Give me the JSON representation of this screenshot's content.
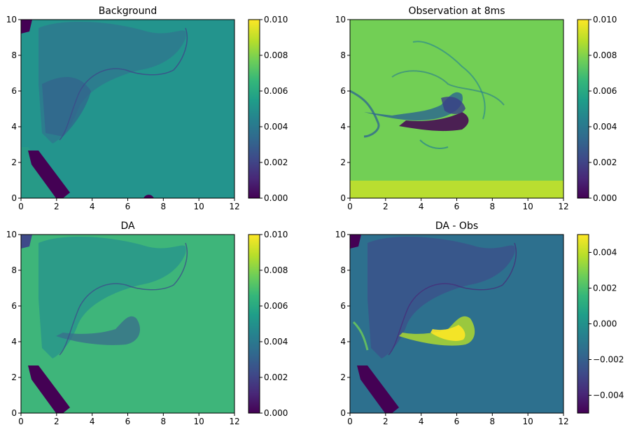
{
  "chart_data": [
    {
      "type": "heatmap",
      "title": "Background",
      "xlim": [
        0,
        12
      ],
      "ylim": [
        0,
        10
      ],
      "x_ticks": [
        "0",
        "2",
        "4",
        "6",
        "8",
        "10",
        "12"
      ],
      "y_ticks": [
        "0",
        "2",
        "4",
        "6",
        "8",
        "10"
      ],
      "colorbar": {
        "range": [
          0.0,
          0.01
        ],
        "ticks": [
          "0.000",
          "0.002",
          "0.004",
          "0.006",
          "0.008",
          "0.010"
        ],
        "colormap": "viridis"
      },
      "typical_value": 0.0055,
      "grid": false
    },
    {
      "type": "heatmap",
      "title": "Observation at 8ms",
      "xlim": [
        0,
        12
      ],
      "ylim": [
        0,
        10
      ],
      "x_ticks": [
        "0",
        "2",
        "4",
        "6",
        "8",
        "10",
        "12"
      ],
      "y_ticks": [
        "0",
        "2",
        "4",
        "6",
        "8",
        "10"
      ],
      "colorbar": {
        "range": [
          0.0,
          0.01
        ],
        "ticks": [
          "0.000",
          "0.002",
          "0.004",
          "0.006",
          "0.008",
          "0.010"
        ],
        "colormap": "viridis"
      },
      "typical_value": 0.0075,
      "grid": false
    },
    {
      "type": "heatmap",
      "title": "DA",
      "xlim": [
        0,
        12
      ],
      "ylim": [
        0,
        10
      ],
      "x_ticks": [
        "0",
        "2",
        "4",
        "6",
        "8",
        "10",
        "12"
      ],
      "y_ticks": [
        "0",
        "2",
        "4",
        "6",
        "8",
        "10"
      ],
      "colorbar": {
        "range": [
          0.0,
          0.01
        ],
        "ticks": [
          "0.000",
          "0.002",
          "0.004",
          "0.006",
          "0.008",
          "0.010"
        ],
        "colormap": "viridis"
      },
      "typical_value": 0.0062,
      "grid": false
    },
    {
      "type": "heatmap",
      "title": "DA - Obs",
      "xlim": [
        0,
        12
      ],
      "ylim": [
        0,
        10
      ],
      "x_ticks": [
        "0",
        "2",
        "4",
        "6",
        "8",
        "10",
        "12"
      ],
      "y_ticks": [
        "0",
        "2",
        "4",
        "6",
        "8",
        "10"
      ],
      "colorbar": {
        "range": [
          -0.005,
          0.005
        ],
        "ticks": [
          "−0.004",
          "−0.002",
          "0.000",
          "0.002",
          "0.004"
        ],
        "tick_values": [
          -0.004,
          -0.002,
          0.0,
          0.002,
          0.004
        ],
        "colormap": "viridis"
      },
      "typical_value": -0.0012,
      "grid": false
    }
  ],
  "colors": {
    "viridis": [
      "#440154",
      "#482878",
      "#3e4a89",
      "#31688e",
      "#26828e",
      "#1f9e89",
      "#35b779",
      "#6ece58",
      "#b5de2b",
      "#fde725"
    ]
  }
}
